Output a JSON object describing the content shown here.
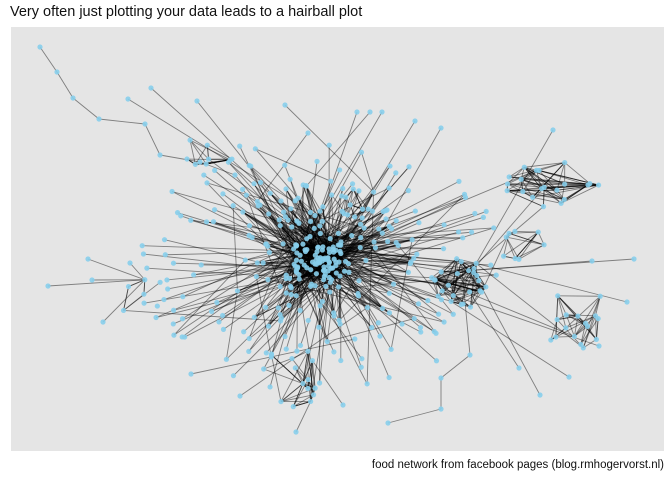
{
  "title": "Very often just plotting your data leads to a hairball plot",
  "caption": "food network from facebook pages (blog.rmhogervorst.nl)",
  "colors": {
    "panel_background": "#e5e5e5",
    "node_fill": "#87ceeb",
    "edge_stroke": "#000000"
  }
}
